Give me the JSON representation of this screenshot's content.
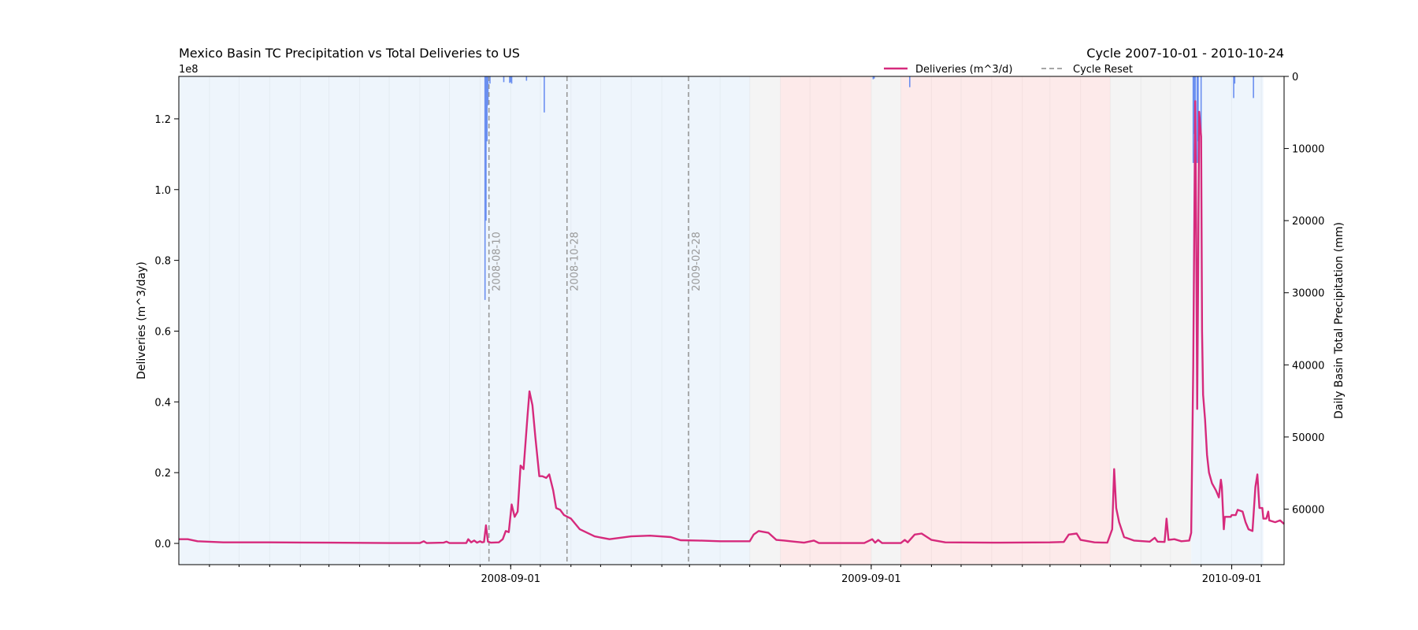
{
  "title_left": "Mexico Basin TC Precipitation vs Total Deliveries to US",
  "title_right": "Cycle 2007-10-01 - 2010-10-24",
  "colors": {
    "deliveries": "#d62a7c",
    "precip": "#6b8ff0",
    "reset": "#999999",
    "band_blue": "#eef5fc",
    "band_red": "#fdeaea",
    "band_gray": "#f4f4f4"
  },
  "chart_data": {
    "type": "line",
    "x_range": [
      "2007-10-01",
      "2010-10-24"
    ],
    "x_ticks": [
      "2008-09-01",
      "2009-09-01",
      "2010-09-01"
    ],
    "y_left": {
      "label": "Deliveries (m^3/day)",
      "multiplier": "1e8",
      "range": [
        -0.06,
        1.32
      ],
      "ticks": [
        "0.0",
        "0.2",
        "0.4",
        "0.6",
        "0.8",
        "1.0",
        "1.2"
      ]
    },
    "y_right": {
      "label": "Daily Basin Total Precipitation (mm)",
      "range": [
        0,
        67700
      ],
      "inverted": true,
      "ticks": [
        "0",
        "10000",
        "20000",
        "30000",
        "40000",
        "50000",
        "60000"
      ]
    },
    "legend": {
      "position": "top-center",
      "entries": [
        "Deliveries (m^3/d)",
        "Cycle Reset"
      ]
    },
    "bands": [
      {
        "start": "2007-10-01",
        "end": "2009-05-01",
        "kind": "blue"
      },
      {
        "start": "2009-05-01",
        "end": "2009-06-01",
        "kind": "gray"
      },
      {
        "start": "2009-06-01",
        "end": "2009-09-01",
        "kind": "red"
      },
      {
        "start": "2009-09-01",
        "end": "2009-10-01",
        "kind": "gray"
      },
      {
        "start": "2009-10-01",
        "end": "2010-05-01",
        "kind": "red"
      },
      {
        "start": "2010-05-01",
        "end": "2010-07-22",
        "kind": "gray"
      },
      {
        "start": "2010-07-22",
        "end": "2010-10-03",
        "kind": "blue"
      }
    ],
    "cycle_resets": [
      "2008-08-10",
      "2008-10-28",
      "2009-02-28"
    ],
    "deliveries": [
      [
        "2007-10-01",
        0.012
      ],
      [
        "2007-10-10",
        0.012
      ],
      [
        "2007-10-20",
        0.006
      ],
      [
        "2007-11-15",
        0.003
      ],
      [
        "2008-01-01",
        0.003
      ],
      [
        "2008-03-01",
        0.002
      ],
      [
        "2008-05-01",
        0.001
      ],
      [
        "2008-06-01",
        0.001
      ],
      [
        "2008-06-05",
        0.006
      ],
      [
        "2008-06-08",
        0.001
      ],
      [
        "2008-06-25",
        0.002
      ],
      [
        "2008-06-28",
        0.005
      ],
      [
        "2008-07-01",
        0.001
      ],
      [
        "2008-07-18",
        0.001
      ],
      [
        "2008-07-20",
        0.012
      ],
      [
        "2008-07-23",
        0.003
      ],
      [
        "2008-07-26",
        0.008
      ],
      [
        "2008-07-29",
        0.002
      ],
      [
        "2008-08-01",
        0.006
      ],
      [
        "2008-08-03",
        0.003
      ],
      [
        "2008-08-05",
        0.004
      ],
      [
        "2008-08-07",
        0.051
      ],
      [
        "2008-08-09",
        0.005
      ],
      [
        "2008-08-12",
        0.002
      ],
      [
        "2008-08-20",
        0.003
      ],
      [
        "2008-08-24",
        0.012
      ],
      [
        "2008-08-27",
        0.035
      ],
      [
        "2008-08-30",
        0.032
      ],
      [
        "2008-09-02",
        0.11
      ],
      [
        "2008-09-05",
        0.075
      ],
      [
        "2008-09-08",
        0.09
      ],
      [
        "2008-09-11",
        0.22
      ],
      [
        "2008-09-14",
        0.21
      ],
      [
        "2008-09-18",
        0.36
      ],
      [
        "2008-09-20",
        0.43
      ],
      [
        "2008-09-23",
        0.39
      ],
      [
        "2008-09-26",
        0.3
      ],
      [
        "2008-09-30",
        0.19
      ],
      [
        "2008-10-03",
        0.19
      ],
      [
        "2008-10-07",
        0.185
      ],
      [
        "2008-10-10",
        0.195
      ],
      [
        "2008-10-14",
        0.15
      ],
      [
        "2008-10-17",
        0.1
      ],
      [
        "2008-10-21",
        0.095
      ],
      [
        "2008-10-25",
        0.08
      ],
      [
        "2008-11-01",
        0.07
      ],
      [
        "2008-11-10",
        0.04
      ],
      [
        "2008-11-25",
        0.02
      ],
      [
        "2008-12-10",
        0.012
      ],
      [
        "2009-01-01",
        0.02
      ],
      [
        "2009-01-20",
        0.022
      ],
      [
        "2009-02-10",
        0.018
      ],
      [
        "2009-02-20",
        0.009
      ],
      [
        "2009-03-10",
        0.008
      ],
      [
        "2009-04-01",
        0.006
      ],
      [
        "2009-04-20",
        0.006
      ],
      [
        "2009-05-01",
        0.006
      ],
      [
        "2009-05-05",
        0.025
      ],
      [
        "2009-05-10",
        0.035
      ],
      [
        "2009-05-20",
        0.03
      ],
      [
        "2009-05-28",
        0.01
      ],
      [
        "2009-06-05",
        0.008
      ],
      [
        "2009-06-15",
        0.005
      ],
      [
        "2009-06-25",
        0.002
      ],
      [
        "2009-07-05",
        0.008
      ],
      [
        "2009-07-10",
        0.001
      ],
      [
        "2009-08-01",
        0.001
      ],
      [
        "2009-08-25",
        0.001
      ],
      [
        "2009-09-02",
        0.012
      ],
      [
        "2009-09-05",
        0.002
      ],
      [
        "2009-09-08",
        0.01
      ],
      [
        "2009-09-12",
        0.001
      ],
      [
        "2009-10-01",
        0.001
      ],
      [
        "2009-10-05",
        0.01
      ],
      [
        "2009-10-08",
        0.003
      ],
      [
        "2009-10-15",
        0.025
      ],
      [
        "2009-10-22",
        0.028
      ],
      [
        "2009-11-01",
        0.01
      ],
      [
        "2009-11-15",
        0.003
      ],
      [
        "2010-01-01",
        0.002
      ],
      [
        "2010-03-01",
        0.003
      ],
      [
        "2010-03-15",
        0.004
      ],
      [
        "2010-03-20",
        0.025
      ],
      [
        "2010-03-28",
        0.028
      ],
      [
        "2010-04-01",
        0.01
      ],
      [
        "2010-04-15",
        0.003
      ],
      [
        "2010-04-28",
        0.002
      ],
      [
        "2010-05-03",
        0.04
      ],
      [
        "2010-05-05",
        0.21
      ],
      [
        "2010-05-07",
        0.1
      ],
      [
        "2010-05-10",
        0.06
      ],
      [
        "2010-05-15",
        0.018
      ],
      [
        "2010-05-25",
        0.008
      ],
      [
        "2010-06-10",
        0.005
      ],
      [
        "2010-06-15",
        0.016
      ],
      [
        "2010-06-18",
        0.005
      ],
      [
        "2010-06-25",
        0.004
      ],
      [
        "2010-06-27",
        0.07
      ],
      [
        "2010-06-29",
        0.01
      ],
      [
        "2010-07-05",
        0.012
      ],
      [
        "2010-07-12",
        0.006
      ],
      [
        "2010-07-20",
        0.008
      ],
      [
        "2010-07-22",
        0.03
      ],
      [
        "2010-07-24",
        0.5
      ],
      [
        "2010-07-26",
        1.25
      ],
      [
        "2010-07-27",
        0.9
      ],
      [
        "2010-07-28",
        0.38
      ],
      [
        "2010-07-29",
        0.75
      ],
      [
        "2010-07-30",
        1.22
      ],
      [
        "2010-08-01",
        1.15
      ],
      [
        "2010-08-02",
        0.6
      ],
      [
        "2010-08-03",
        0.42
      ],
      [
        "2010-08-05",
        0.35
      ],
      [
        "2010-08-07",
        0.25
      ],
      [
        "2010-08-09",
        0.2
      ],
      [
        "2010-08-12",
        0.17
      ],
      [
        "2010-08-16",
        0.15
      ],
      [
        "2010-08-19",
        0.13
      ],
      [
        "2010-08-21",
        0.18
      ],
      [
        "2010-08-22",
        0.16
      ],
      [
        "2010-08-24",
        0.04
      ],
      [
        "2010-08-25",
        0.075
      ],
      [
        "2010-08-31",
        0.075
      ],
      [
        "2010-09-01",
        0.08
      ],
      [
        "2010-09-05",
        0.08
      ],
      [
        "2010-09-07",
        0.095
      ],
      [
        "2010-09-12",
        0.09
      ],
      [
        "2010-09-15",
        0.06
      ],
      [
        "2010-09-18",
        0.04
      ],
      [
        "2010-09-22",
        0.035
      ],
      [
        "2010-09-25",
        0.16
      ],
      [
        "2010-09-27",
        0.195
      ],
      [
        "2010-09-29",
        0.1
      ],
      [
        "2010-10-02",
        0.1
      ],
      [
        "2010-10-03",
        0.07
      ],
      [
        "2010-10-06",
        0.07
      ],
      [
        "2010-10-08",
        0.09
      ],
      [
        "2010-10-09",
        0.065
      ],
      [
        "2010-10-15",
        0.06
      ],
      [
        "2010-10-20",
        0.065
      ],
      [
        "2010-10-24",
        0.055
      ]
    ],
    "precipitation": [
      [
        "2008-08-06",
        31000
      ],
      [
        "2008-08-07",
        20000
      ],
      [
        "2008-08-08",
        9000
      ],
      [
        "2008-08-09",
        4000
      ],
      [
        "2008-08-11",
        1000
      ],
      [
        "2008-08-25",
        800
      ],
      [
        "2008-08-31",
        900
      ],
      [
        "2008-09-01",
        800
      ],
      [
        "2008-09-02",
        1000
      ],
      [
        "2008-09-17",
        600
      ],
      [
        "2008-10-05",
        5000
      ],
      [
        "2009-09-03",
        400
      ],
      [
        "2009-09-04",
        300
      ],
      [
        "2009-10-10",
        1500
      ],
      [
        "2010-07-24",
        12000
      ],
      [
        "2010-07-25",
        8000
      ],
      [
        "2010-07-26",
        15000
      ],
      [
        "2010-07-28",
        12000
      ],
      [
        "2010-07-29",
        9000
      ],
      [
        "2010-08-01",
        12000
      ],
      [
        "2010-09-03",
        3000
      ],
      [
        "2010-09-04",
        1000
      ],
      [
        "2010-09-23",
        3000
      ]
    ]
  }
}
